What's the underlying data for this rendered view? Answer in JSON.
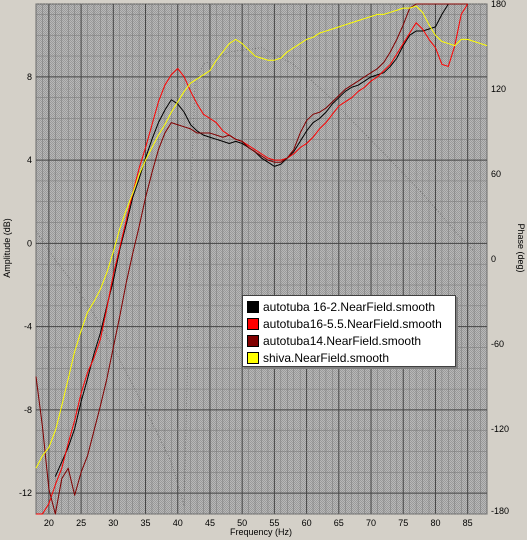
{
  "chart_data": {
    "type": "line",
    "xlabel": "Frequency (Hz)",
    "ylabel": "Amplitude (dB)",
    "y2label": "Phase (deg)",
    "xlim": [
      18,
      88
    ],
    "ylim": [
      -13,
      11.5
    ],
    "y2lim": [
      -180,
      180
    ],
    "x_ticks": [
      20,
      25,
      30,
      35,
      40,
      45,
      50,
      55,
      60,
      65,
      70,
      75,
      80,
      85
    ],
    "y_ticks": [
      -12,
      -8,
      -4,
      0,
      4,
      8
    ],
    "y2_ticks": [
      -180,
      -120,
      -60,
      0,
      60,
      120,
      180
    ],
    "grid": true,
    "legend_position": "center-right",
    "series": [
      {
        "name": "autotuba 16-2.NearField.smooth",
        "color": "#000000",
        "x": [
          21,
          22,
          23,
          24,
          25,
          26,
          27,
          28,
          29,
          30,
          31,
          32,
          33,
          34,
          35,
          36,
          37,
          38,
          39,
          40,
          41,
          42,
          43,
          44,
          45,
          46,
          47,
          48,
          49,
          50,
          51,
          52,
          53,
          54,
          55,
          56,
          57,
          58,
          59,
          60,
          61,
          62,
          63,
          64,
          65,
          66,
          67,
          68,
          69,
          70,
          71,
          72,
          73,
          74,
          75,
          76,
          77,
          78,
          79,
          80,
          81,
          82,
          83,
          84,
          85
        ],
        "y": [
          -11.2,
          -10.5,
          -9.8,
          -8.9,
          -7.6,
          -6.5,
          -5.3,
          -4.3,
          -3.0,
          -1.8,
          -0.3,
          0.9,
          2.2,
          3.1,
          4.1,
          5.0,
          5.8,
          6.4,
          6.9,
          6.7,
          6.3,
          5.7,
          5.4,
          5.2,
          5.1,
          5.0,
          4.9,
          4.8,
          4.9,
          4.8,
          4.6,
          4.4,
          4.1,
          3.9,
          3.7,
          3.8,
          4.1,
          4.4,
          4.9,
          5.4,
          5.8,
          6.0,
          6.3,
          6.7,
          7.0,
          7.3,
          7.5,
          7.6,
          7.8,
          8.0,
          8.1,
          8.2,
          8.5,
          8.9,
          9.5,
          10.0,
          10.2,
          10.2,
          10.3,
          10.4,
          11.0,
          11.8,
          12.5,
          12.5,
          11.8
        ]
      },
      {
        "name": "autotuba16-5.5.NearField.smooth",
        "color": "#ff0000",
        "x": [
          18,
          19,
          20,
          21,
          22,
          23,
          24,
          25,
          26,
          27,
          28,
          29,
          30,
          31,
          32,
          33,
          34,
          35,
          36,
          37,
          38,
          39,
          40,
          41,
          42,
          43,
          44,
          45,
          46,
          47,
          48,
          49,
          50,
          51,
          52,
          53,
          54,
          55,
          56,
          57,
          58,
          59,
          60,
          61,
          62,
          63,
          64,
          65,
          66,
          67,
          68,
          69,
          70,
          71,
          72,
          73,
          74,
          75,
          76,
          77,
          78,
          79,
          80,
          81,
          82,
          83,
          84,
          85
        ],
        "y": [
          -14.0,
          -13.0,
          -12.5,
          -11.6,
          -10.8,
          -9.6,
          -8.5,
          -7.2,
          -6.2,
          -5.5,
          -4.6,
          -3.1,
          -1.5,
          -0.2,
          1.1,
          2.4,
          3.6,
          4.6,
          5.7,
          6.8,
          7.6,
          8.1,
          8.4,
          8.0,
          7.3,
          6.7,
          6.2,
          6.0,
          5.8,
          5.4,
          5.2,
          5.0,
          4.9,
          4.7,
          4.5,
          4.3,
          4.1,
          4.0,
          4.0,
          4.1,
          4.3,
          4.6,
          4.8,
          5.1,
          5.5,
          5.8,
          6.2,
          6.6,
          6.8,
          7.0,
          7.3,
          7.5,
          7.8,
          8.0,
          8.3,
          8.6,
          9.1,
          9.6,
          10.1,
          10.6,
          10.3,
          9.8,
          9.4,
          8.6,
          8.5,
          9.5,
          11.0,
          12.5
        ]
      },
      {
        "name": "autotuba14.NearField.smooth",
        "color": "#800000",
        "x": [
          18,
          19,
          20,
          21,
          22,
          23,
          24,
          25,
          26,
          27,
          28,
          29,
          30,
          31,
          32,
          33,
          34,
          35,
          36,
          37,
          38,
          39,
          40,
          41,
          42,
          43,
          44,
          45,
          46,
          47,
          48,
          49,
          50,
          51,
          52,
          53,
          54,
          55,
          56,
          57,
          58,
          59,
          60,
          61,
          62,
          63,
          64,
          65,
          66,
          67,
          68,
          69,
          70,
          71,
          72,
          73,
          74,
          75,
          76,
          77,
          78,
          79,
          80,
          81,
          82,
          83,
          84,
          85
        ],
        "y": [
          -6.4,
          -8.8,
          -11.8,
          -13.2,
          -11.3,
          -10.8,
          -12.1,
          -11.0,
          -10.2,
          -9.0,
          -7.8,
          -6.5,
          -5.0,
          -3.5,
          -1.9,
          -0.5,
          0.8,
          2.2,
          3.4,
          4.5,
          5.3,
          5.8,
          5.7,
          5.6,
          5.5,
          5.3,
          5.3,
          5.3,
          5.2,
          5.1,
          5.2,
          5.0,
          4.9,
          4.6,
          4.4,
          4.2,
          4.0,
          3.9,
          3.9,
          4.1,
          4.5,
          5.3,
          5.9,
          6.2,
          6.3,
          6.5,
          6.8,
          7.1,
          7.4,
          7.6,
          7.8,
          8.0,
          8.2,
          8.4,
          8.7,
          9.2,
          9.8,
          10.5,
          11.3,
          12.0,
          12.5,
          12.5,
          12.5,
          12.5,
          12.5,
          12.5,
          12.5,
          12.5
        ]
      },
      {
        "name": "shiva.NearField.smooth",
        "color": "#ffff00",
        "x": [
          18,
          19,
          20,
          21,
          22,
          23,
          24,
          25,
          26,
          27,
          28,
          29,
          30,
          31,
          32,
          33,
          34,
          35,
          36,
          37,
          38,
          39,
          40,
          41,
          42,
          43,
          44,
          45,
          46,
          47,
          48,
          49,
          50,
          51,
          52,
          53,
          54,
          55,
          56,
          57,
          58,
          59,
          60,
          61,
          62,
          63,
          64,
          65,
          66,
          67,
          68,
          69,
          70,
          71,
          72,
          73,
          74,
          75,
          76,
          77,
          78,
          79,
          80,
          81,
          82,
          83,
          84,
          85,
          86,
          87,
          88
        ],
        "y": [
          -10.8,
          -10.2,
          -9.8,
          -9.0,
          -7.8,
          -6.5,
          -5.2,
          -4.2,
          -3.3,
          -2.8,
          -2.2,
          -1.4,
          -0.4,
          0.7,
          1.6,
          2.4,
          3.3,
          4.0,
          4.6,
          5.2,
          5.7,
          6.3,
          6.8,
          7.3,
          7.7,
          7.9,
          8.1,
          8.3,
          8.8,
          9.2,
          9.6,
          9.8,
          9.6,
          9.3,
          9.0,
          8.9,
          8.8,
          8.8,
          8.9,
          9.2,
          9.4,
          9.6,
          9.8,
          9.9,
          10.1,
          10.2,
          10.3,
          10.4,
          10.5,
          10.6,
          10.7,
          10.8,
          10.9,
          11.0,
          11.0,
          11.1,
          11.2,
          11.3,
          11.3,
          11.4,
          11.1,
          10.5,
          10.0,
          9.7,
          9.6,
          9.5,
          9.8,
          9.8,
          9.7,
          9.6,
          9.5
        ]
      }
    ]
  }
}
